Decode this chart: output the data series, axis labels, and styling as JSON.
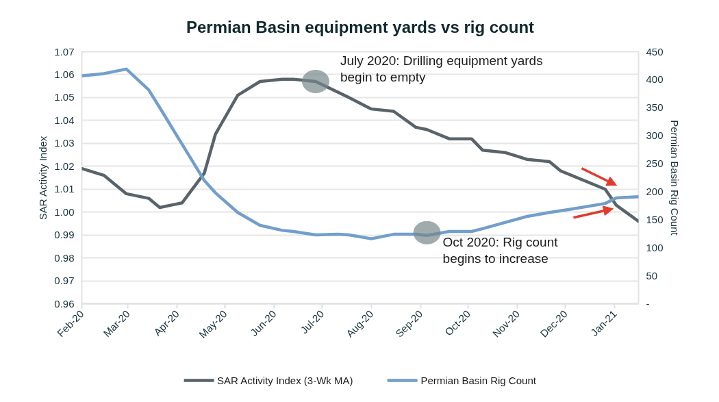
{
  "chart_data": {
    "type": "line",
    "title": "Permian Basin equipment yards vs rig count",
    "ylabel": "SAR Activity Index",
    "y2label": "Permian Basin Rig Count",
    "xlim": [
      "2020-02-01",
      "2021-01-16"
    ],
    "xticks": [
      {
        "value": "2020-02-01",
        "label": "Feb-20"
      },
      {
        "value": "2020-03-01",
        "label": "Mar-20"
      },
      {
        "value": "2020-04-01",
        "label": "Apr-20"
      },
      {
        "value": "2020-05-01",
        "label": "May-20"
      },
      {
        "value": "2020-06-01",
        "label": "Jun-20"
      },
      {
        "value": "2020-07-01",
        "label": "Jul-20"
      },
      {
        "value": "2020-08-01",
        "label": "Aug-20"
      },
      {
        "value": "2020-09-01",
        "label": "Sep-20"
      },
      {
        "value": "2020-10-01",
        "label": "Oct-20"
      },
      {
        "value": "2020-11-01",
        "label": "Nov-20"
      },
      {
        "value": "2020-12-01",
        "label": "Dec-20"
      },
      {
        "value": "2021-01-01",
        "label": "Jan-21"
      }
    ],
    "ylim": [
      0.96,
      1.07
    ],
    "yticks": [
      0.96,
      0.97,
      0.98,
      0.99,
      {
        "value": 1,
        "label": "1.00"
      },
      1.01,
      1.02,
      1.03,
      1.04,
      1.05,
      1.06,
      1.07
    ],
    "y2lim": [
      0,
      450
    ],
    "y2ticks": [
      {
        "value": 0,
        "label": "-"
      },
      50,
      100,
      150,
      200,
      250,
      300,
      350,
      400,
      450
    ],
    "grid": "y",
    "legend": "bottom",
    "series": [
      {
        "name": "SAR Activity Index (3-Wk MA)",
        "color": "#59636a",
        "x": [
          "2020-02-01",
          "2020-02-15",
          "2020-02-29",
          "2020-03-14",
          "2020-03-21",
          "2020-04-04",
          "2020-04-18",
          "2020-04-25",
          "2020-05-09",
          "2020-05-23",
          "2020-06-06",
          "2020-06-13",
          "2020-06-27",
          "2020-07-18",
          "2020-08-01",
          "2020-08-15",
          "2020-08-29",
          "2020-09-05",
          "2020-09-19",
          "2020-10-03",
          "2020-10-10",
          "2020-10-24",
          "2020-11-07",
          "2020-11-21",
          "2020-11-28",
          "2020-12-26",
          "2021-01-02",
          "2021-01-16"
        ],
        "values": [
          1.019,
          1.016,
          1.008,
          1.006,
          1.002,
          1.004,
          1.017,
          1.034,
          1.051,
          1.057,
          1.058,
          1.058,
          1.057,
          1.05,
          1.045,
          1.044,
          1.037,
          1.036,
          1.032,
          1.032,
          1.027,
          1.026,
          1.023,
          1.022,
          1.018,
          1.01,
          1.003,
          0.996
        ]
      },
      {
        "name": "Permian Basin Rig Count",
        "color": "#729fca",
        "axis": "y2",
        "x": [
          "2020-02-01",
          "2020-02-15",
          "2020-02-29",
          "2020-03-14",
          "2020-03-21",
          "2020-04-04",
          "2020-04-18",
          "2020-04-25",
          "2020-05-09",
          "2020-05-23",
          "2020-06-06",
          "2020-06-13",
          "2020-06-27",
          "2020-07-11",
          "2020-07-18",
          "2020-08-01",
          "2020-08-15",
          "2020-08-29",
          "2020-09-05",
          "2020-09-19",
          "2020-10-03",
          "2020-10-10",
          "2020-10-24",
          "2020-11-07",
          "2020-11-21",
          "2020-12-05",
          "2020-12-26",
          "2021-01-02",
          "2021-01-16"
        ],
        "values": [
          407,
          411,
          419,
          382,
          350,
          285,
          220,
          198,
          163,
          140,
          131,
          129,
          123,
          124,
          123,
          116,
          124,
          124,
          122,
          129,
          129,
          134,
          145,
          156,
          163,
          169,
          179,
          189,
          191
        ]
      }
    ],
    "annotations": [
      {
        "text": "July 2020: Drilling equipment yards\nbegin to empty",
        "x": "2020-06-27",
        "y": 1.057
      },
      {
        "text": "Oct 2020: Rig count\nbegins to increase",
        "x": "2020-09-05",
        "y": 0.991
      }
    ]
  }
}
